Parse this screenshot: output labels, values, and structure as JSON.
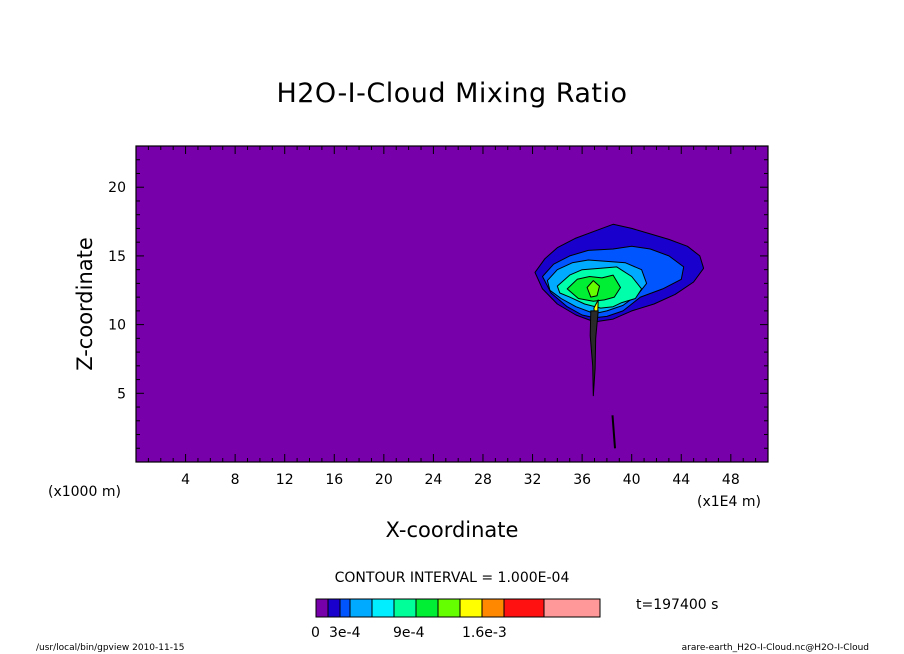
{
  "chart_data": {
    "type": "contour",
    "title": "H2O-I-Cloud Mixing Ratio",
    "xlabel": "X-coordinate",
    "ylabel": "Z-coordinate",
    "x_unit_left": "(x1000 m)",
    "x_unit_right": "(x1E4 m)",
    "xlim": [
      0,
      51
    ],
    "ylim": [
      0,
      23
    ],
    "x_ticks": [
      "4",
      "8",
      "12",
      "16",
      "20",
      "24",
      "28",
      "32",
      "36",
      "40",
      "44",
      "48"
    ],
    "x_tick_values": [
      4,
      8,
      12,
      16,
      20,
      24,
      28,
      32,
      36,
      40,
      44,
      48
    ],
    "y_ticks": [
      "5",
      "10",
      "15",
      "20"
    ],
    "y_tick_values": [
      5,
      10,
      15,
      20
    ],
    "contour_interval": "CONTOUR INTERVAL = 1.000E-04",
    "time_label": "t=197400 s",
    "colorbar": {
      "colors": [
        "#7700aa",
        "#1a00cc",
        "#0055ff",
        "#00aaff",
        "#00eeff",
        "#00ff99",
        "#00ee33",
        "#66ff00",
        "#ffff00",
        "#ff8800",
        "#ff1111",
        "#ff9999"
      ],
      "labels": [
        "0",
        "3e-4",
        "9e-4",
        "1.6e-3"
      ]
    },
    "background_color": "#7700aa",
    "cloud_layers": [
      {
        "color": "#1a00cc",
        "points": [
          [
            32.2,
            13.8
          ],
          [
            33.0,
            14.8
          ],
          [
            34.0,
            15.6
          ],
          [
            35.5,
            16.3
          ],
          [
            37.0,
            16.8
          ],
          [
            38.5,
            17.3
          ],
          [
            40.0,
            17.0
          ],
          [
            41.5,
            16.6
          ],
          [
            43.0,
            16.2
          ],
          [
            44.5,
            15.7
          ],
          [
            45.5,
            15.0
          ],
          [
            45.8,
            14.1
          ],
          [
            45.0,
            13.1
          ],
          [
            43.5,
            12.2
          ],
          [
            41.8,
            11.5
          ],
          [
            40.0,
            11.0
          ],
          [
            38.5,
            10.4
          ],
          [
            37.0,
            10.2
          ],
          [
            35.5,
            10.7
          ],
          [
            34.0,
            11.5
          ],
          [
            32.8,
            12.6
          ]
        ]
      },
      {
        "color": "#0055ff",
        "points": [
          [
            32.8,
            13.5
          ],
          [
            33.7,
            14.4
          ],
          [
            35.0,
            15.0
          ],
          [
            36.5,
            15.4
          ],
          [
            38.5,
            15.5
          ],
          [
            40.0,
            15.7
          ],
          [
            41.5,
            15.5
          ],
          [
            43.0,
            15.0
          ],
          [
            44.2,
            14.2
          ],
          [
            44.0,
            13.3
          ],
          [
            42.5,
            12.6
          ],
          [
            40.7,
            12.0
          ],
          [
            39.3,
            11.0
          ],
          [
            38.0,
            10.6
          ],
          [
            37.0,
            10.5
          ],
          [
            36.0,
            10.7
          ],
          [
            34.8,
            11.3
          ],
          [
            33.5,
            12.3
          ]
        ]
      },
      {
        "color": "#00aaff",
        "points": [
          [
            33.2,
            13.2
          ],
          [
            34.0,
            14.0
          ],
          [
            35.2,
            14.5
          ],
          [
            36.5,
            14.7
          ],
          [
            38.0,
            14.6
          ],
          [
            39.5,
            14.5
          ],
          [
            40.8,
            14.0
          ],
          [
            41.2,
            13.0
          ],
          [
            40.5,
            12.2
          ],
          [
            39.3,
            11.4
          ],
          [
            38.0,
            11.0
          ],
          [
            37.0,
            10.8
          ],
          [
            35.5,
            11.3
          ],
          [
            34.3,
            11.9
          ],
          [
            33.4,
            12.5
          ]
        ]
      },
      {
        "color": "#00ffaa",
        "points": [
          [
            34.0,
            12.8
          ],
          [
            35.0,
            13.6
          ],
          [
            36.0,
            14.0
          ],
          [
            37.5,
            14.1
          ],
          [
            38.8,
            14.2
          ],
          [
            40.0,
            13.5
          ],
          [
            40.8,
            12.6
          ],
          [
            40.3,
            11.9
          ],
          [
            39.2,
            11.6
          ],
          [
            38.5,
            11.3
          ],
          [
            37.5,
            11.2
          ],
          [
            36.2,
            11.5
          ],
          [
            35.0,
            12.0
          ],
          [
            34.2,
            12.3
          ]
        ]
      },
      {
        "color": "#00ee33",
        "points": [
          [
            34.8,
            12.6
          ],
          [
            35.6,
            13.3
          ],
          [
            36.6,
            13.5
          ],
          [
            37.6,
            13.4
          ],
          [
            38.5,
            13.6
          ],
          [
            39.1,
            12.7
          ],
          [
            38.6,
            12.0
          ],
          [
            37.8,
            11.8
          ],
          [
            36.9,
            11.7
          ],
          [
            35.7,
            11.9
          ]
        ]
      },
      {
        "color": "#66ff00",
        "points": [
          [
            36.4,
            12.7
          ],
          [
            36.9,
            13.2
          ],
          [
            37.4,
            12.8
          ],
          [
            37.2,
            12.1
          ],
          [
            36.7,
            12.0
          ]
        ]
      },
      {
        "color": "#ffff00",
        "points": [
          [
            36.95,
            11.2
          ],
          [
            37.3,
            11.8
          ],
          [
            37.25,
            10.5
          ],
          [
            37.05,
            10.4
          ]
        ]
      }
    ],
    "stem": {
      "points": [
        [
          36.7,
          11.0
        ],
        [
          37.3,
          11.0
        ],
        [
          37.1,
          9.0
        ],
        [
          37.05,
          6.8
        ],
        [
          36.9,
          4.8
        ],
        [
          36.85,
          7.0
        ],
        [
          36.65,
          9.2
        ]
      ]
    },
    "streak": {
      "points": [
        [
          38.45,
          3.4
        ],
        [
          38.65,
          1.0
        ]
      ]
    }
  },
  "footer": {
    "left": "/usr/local/bin/gpview  2010-11-15",
    "right": "arare-earth_H2O-I-Cloud.nc@H2O-I-Cloud"
  }
}
